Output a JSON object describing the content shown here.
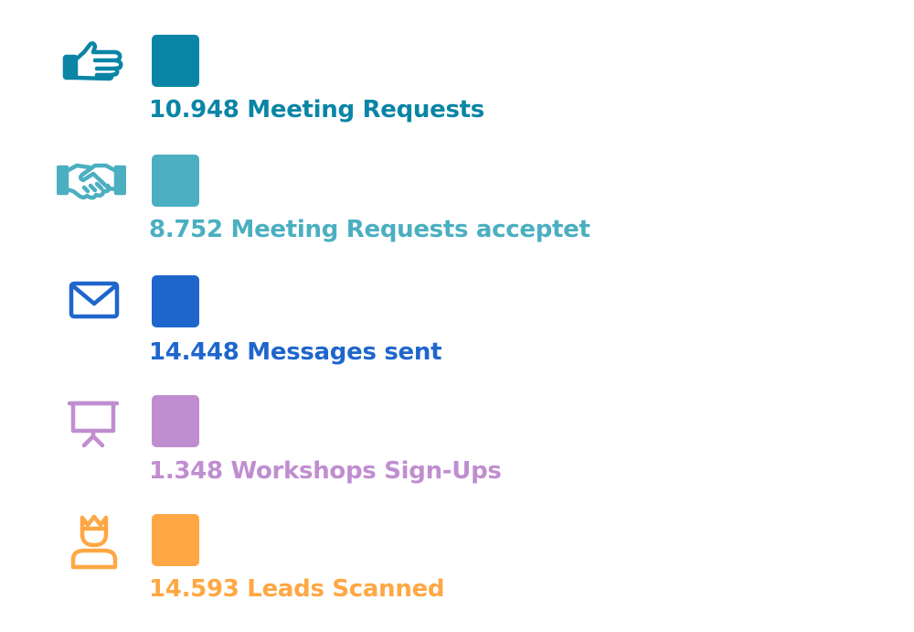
{
  "chart_data": {
    "type": "table",
    "items": [
      {
        "value": "10.948",
        "label": "Meeting Requests",
        "color": "#0A85A6",
        "icon": "pointing-hand-icon"
      },
      {
        "value": "8.752",
        "label": "Meeting Requests acceptet",
        "color": "#4BAFC1",
        "icon": "handshake-icon"
      },
      {
        "value": "14.448",
        "label": "Messages sent",
        "color": "#1F66CC",
        "icon": "envelope-icon"
      },
      {
        "value": "1.348",
        "label": "Workshops Sign-Ups",
        "color": "#C08ED0",
        "icon": "presentation-board-icon"
      },
      {
        "value": "14.593",
        "label": "Leads Scanned",
        "color": "#FFA744",
        "icon": "person-crown-icon"
      }
    ]
  }
}
